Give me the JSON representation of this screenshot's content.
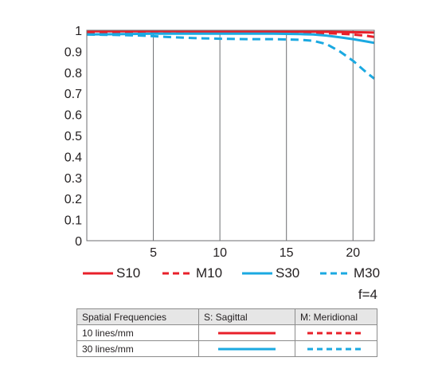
{
  "chart_data": {
    "type": "line",
    "xlabel": "",
    "ylabel": "",
    "xlim": [
      0,
      21.6
    ],
    "ylim": [
      0,
      1
    ],
    "xticks": [
      5,
      10,
      15,
      20
    ],
    "yticks": [
      0,
      0.1,
      0.2,
      0.3,
      0.4,
      0.5,
      0.6,
      0.7,
      0.8,
      0.9,
      1
    ],
    "ytick_labels": [
      "0",
      "0.1",
      "0.2",
      "0.3",
      "0.4",
      "0.5",
      "0.6",
      "0.7",
      "0.8",
      "0.9",
      "1"
    ],
    "grid": "vertical",
    "series": [
      {
        "name": "S10",
        "color": "#e8202a",
        "dash": "solid",
        "x": [
          0,
          5,
          10,
          15,
          17,
          19,
          20,
          21,
          21.6
        ],
        "y": [
          0.995,
          0.995,
          0.994,
          0.994,
          0.993,
          0.992,
          0.991,
          0.99,
          0.989
        ]
      },
      {
        "name": "M10",
        "color": "#e8202a",
        "dash": "dashed",
        "x": [
          0,
          5,
          10,
          15,
          17,
          18,
          19,
          20,
          21,
          21.6
        ],
        "y": [
          0.99,
          0.99,
          0.99,
          0.99,
          0.988,
          0.986,
          0.984,
          0.98,
          0.974,
          0.968
        ]
      },
      {
        "name": "S30",
        "color": "#1ba9e1",
        "dash": "solid",
        "x": [
          0,
          5,
          10,
          14,
          16,
          17,
          18,
          19,
          20,
          21,
          21.6
        ],
        "y": [
          0.98,
          0.984,
          0.984,
          0.984,
          0.982,
          0.98,
          0.975,
          0.967,
          0.958,
          0.947,
          0.94
        ]
      },
      {
        "name": "M30",
        "color": "#1ba9e1",
        "dash": "dashed",
        "x": [
          0,
          2,
          4,
          5,
          6,
          8,
          10,
          12,
          14,
          16,
          17,
          18,
          19,
          20,
          21,
          21.6
        ],
        "y": [
          0.98,
          0.978,
          0.975,
          0.972,
          0.968,
          0.963,
          0.96,
          0.958,
          0.958,
          0.955,
          0.95,
          0.935,
          0.9,
          0.855,
          0.8,
          0.77
        ]
      }
    ]
  },
  "legend": [
    {
      "label": "S10",
      "color": "#e8202a",
      "dash": "solid"
    },
    {
      "label": "M10",
      "color": "#e8202a",
      "dash": "dashed"
    },
    {
      "label": "S30",
      "color": "#1ba9e1",
      "dash": "solid"
    },
    {
      "label": "M30",
      "color": "#1ba9e1",
      "dash": "dashed"
    }
  ],
  "aperture": "f=4",
  "key_table": {
    "header": [
      "Spatial Frequencies",
      "S: Sagittal",
      "M: Meridional"
    ],
    "rows": [
      {
        "label": "10 lines/mm",
        "color": "#e8202a"
      },
      {
        "label": "30 lines/mm",
        "color": "#1ba9e1"
      }
    ]
  }
}
